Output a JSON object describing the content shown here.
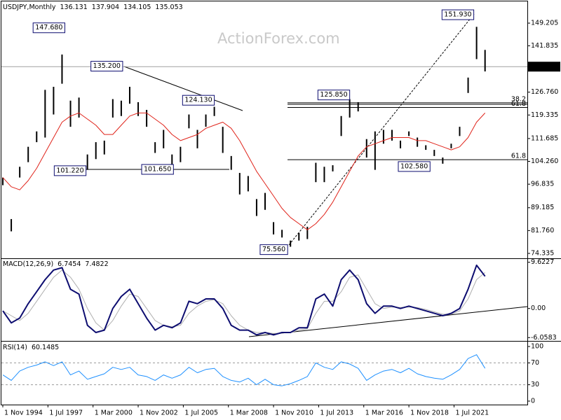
{
  "chart_data": {
    "type": "ohlc",
    "title": "USDJPY,Monthly",
    "header_values": [
      136.131,
      137.904,
      134.105,
      135.053
    ],
    "watermark": "ActionForex.com",
    "last": 135.053,
    "bar_color": "#000000",
    "ma_color": "#e0241b",
    "last_color": "#000000",
    "x": [
      "1994-11",
      "1995-05",
      "1995-11",
      "1996-05",
      "1996-11",
      "1997-05",
      "1997-11",
      "1998-05",
      "1998-11",
      "1999-05",
      "1999-11",
      "2000-05",
      "2000-11",
      "2001-05",
      "2001-11",
      "2002-05",
      "2002-11",
      "2003-05",
      "2003-11",
      "2004-05",
      "2004-11",
      "2005-05",
      "2005-11",
      "2006-05",
      "2006-11",
      "2007-05",
      "2007-11",
      "2008-05",
      "2008-11",
      "2009-05",
      "2009-11",
      "2010-05",
      "2010-11",
      "2011-05",
      "2011-11",
      "2012-05",
      "2012-11",
      "2013-05",
      "2013-11",
      "2014-05",
      "2014-11",
      "2015-05",
      "2015-11",
      "2016-05",
      "2016-11",
      "2017-05",
      "2017-11",
      "2018-05",
      "2018-11",
      "2019-05",
      "2019-11",
      "2020-05",
      "2020-11",
      "2021-05",
      "2021-11",
      "2022-05",
      "2022-11",
      "2023-05"
    ],
    "high": [
      99,
      85.5,
      102.5,
      109,
      114,
      127.5,
      128.5,
      139,
      124,
      125,
      106.5,
      110.5,
      111,
      124.5,
      124,
      128.5,
      123.5,
      121,
      110.5,
      114.5,
      106.5,
      109,
      119.5,
      114.5,
      119.5,
      122,
      115.5,
      106,
      100.5,
      99.5,
      92,
      94,
      84.5,
      82,
      78.5,
      81,
      83,
      103.8,
      102.5,
      103,
      119,
      124.5,
      123.5,
      111.5,
      114,
      114.5,
      114.5,
      111,
      114,
      112,
      109.5,
      108,
      105.5,
      110,
      115.5,
      131.5,
      148,
      140.5
    ],
    "low": [
      96.5,
      81.5,
      99,
      104,
      110.5,
      112,
      119.5,
      129.5,
      115.5,
      118.5,
      101.5,
      105,
      106.5,
      118.5,
      119,
      123,
      119,
      115.5,
      107,
      108.5,
      102,
      104,
      115,
      108.5,
      115.5,
      119,
      107,
      101.5,
      93.5,
      94.5,
      86.5,
      88.5,
      80.5,
      79.5,
      76.5,
      78.5,
      79,
      97.5,
      97.5,
      101,
      112.5,
      118.5,
      120.5,
      105.5,
      101.5,
      110,
      111,
      108.5,
      112.5,
      109,
      108,
      106,
      103.5,
      108.5,
      112.5,
      126.5,
      137.5,
      133.5
    ],
    "ma": [
      99,
      96,
      95,
      98,
      102,
      107,
      112,
      117,
      119,
      120,
      118,
      116,
      113,
      113,
      116,
      119,
      120,
      120,
      118,
      116,
      113,
      111,
      112,
      113,
      115,
      116,
      117,
      115,
      111,
      106,
      101,
      97,
      93,
      89,
      86,
      84,
      82,
      84,
      87,
      91,
      96,
      101,
      106,
      109,
      110,
      111,
      112,
      112,
      112,
      111,
      111,
      110,
      109,
      108,
      109,
      112,
      117,
      120
    ],
    "xlim": [
      "1994-10",
      "2025-11"
    ],
    "xticks": [
      {
        "value": "1994-11",
        "label": "1 Nov 1994"
      },
      {
        "value": "1997-07",
        "label": "1 Jul 1997"
      },
      {
        "value": "2000-03",
        "label": "1 Mar 2000"
      },
      {
        "value": "2002-11",
        "label": "1 Nov 2002"
      },
      {
        "value": "2005-07",
        "label": "1 Jul 2005"
      },
      {
        "value": "2008-03",
        "label": "1 Mar 2008"
      },
      {
        "value": "2010-11",
        "label": "1 Nov 2010"
      },
      {
        "value": "2013-07",
        "label": "1 Jul 2013"
      },
      {
        "value": "2016-03",
        "label": "1 Mar 2016"
      },
      {
        "value": "2018-11",
        "label": "1 Nov 2018"
      },
      {
        "value": "2021-07",
        "label": "1 Jul 2021"
      }
    ],
    "ylim": [
      72.74,
      156.27
    ],
    "yticks": [
      74.335,
      {
        "value": 81.76,
        "label": "81.760"
      },
      89.185,
      96.835,
      {
        "value": 104.26,
        "label": "104.260"
      },
      111.685,
      119.335,
      {
        "value": 126.76,
        "label": "126.760"
      },
      141.835,
      149.205
    ],
    "annotations": [
      {
        "x": "1998-08",
        "value": 147.68,
        "label": "147.680"
      },
      {
        "x": "2002-01",
        "value": 135.2,
        "label": "135.200"
      },
      {
        "x": "2007-06",
        "value": 124.13,
        "label": "124.130"
      },
      {
        "x": "1999-11",
        "value": 101.22,
        "label": "101.220"
      },
      {
        "x": "2005-01",
        "value": 101.65,
        "label": "101.650"
      },
      {
        "x": "2011-10",
        "value": 75.56,
        "label": "75.560"
      },
      {
        "x": "2015-06",
        "value": 125.85,
        "label": "125.850"
      },
      {
        "x": "2020-03",
        "value": 102.58,
        "label": "102.580"
      },
      {
        "x": "2022-10",
        "value": 151.93,
        "label": "151.930"
      }
    ],
    "fib_levels": [
      {
        "label": "38.2",
        "value": 123.3
      },
      {
        "label": "61.8",
        "value": 121.8
      },
      {
        "label": "61.8",
        "value": 104.8
      }
    ],
    "indicators": [
      {
        "type": "macd",
        "title": "MACD(12,26,9)",
        "header_values": [
          6.7454,
          7.4822
        ],
        "macd_color": "#0d0d70",
        "signal_color": "#b0b0b0",
        "ylim": [
          -6.6,
          10.3
        ],
        "yticks": [
          -6.0583,
          {
            "value": 0,
            "label": "0.00"
          },
          9.6227
        ],
        "macd": [
          -0.5,
          -3,
          -2,
          1,
          3.5,
          6,
          8,
          8.5,
          4,
          3,
          -3.5,
          -5,
          -4.5,
          0,
          2.5,
          4,
          1,
          -2,
          -4.5,
          -3.5,
          -4,
          -3,
          1.5,
          1,
          2,
          2,
          0,
          -3.5,
          -4.5,
          -4.5,
          -5.5,
          -5,
          -5.5,
          -5,
          -5,
          -4,
          -4,
          2,
          3,
          0.5,
          6,
          8,
          6,
          1,
          -1,
          0.5,
          0.5,
          0,
          0.5,
          0,
          -0.5,
          -1,
          -1.5,
          -1,
          0,
          4,
          9,
          6.7
        ],
        "signal": [
          -0.5,
          -1.5,
          -2.5,
          -1,
          1.5,
          4,
          6.5,
          8,
          6.5,
          4,
          0,
          -3,
          -4.5,
          -2.5,
          0.5,
          3,
          2.5,
          0,
          -2.5,
          -3.5,
          -3.8,
          -3.5,
          -1,
          0.5,
          1.5,
          1.8,
          1,
          -1.5,
          -3.5,
          -4.5,
          -5,
          -5,
          -5.2,
          -5.1,
          -5,
          -4.5,
          -4.2,
          -1,
          1.5,
          1.5,
          3.5,
          6.5,
          7,
          4,
          1,
          0,
          0.3,
          0.2,
          0.3,
          0.2,
          -0.2,
          -0.7,
          -1.2,
          -1.2,
          -0.5,
          2,
          6,
          7.5
        ]
      },
      {
        "type": "rsi",
        "title": "RSI(14)",
        "header_values": [
          60.1485
        ],
        "color": "#1e90ff",
        "levels": [
          30,
          70
        ],
        "ylim": [
          -6.4,
          109
        ],
        "yticks": [
          0,
          30,
          70,
          100
        ],
        "values": [
          48,
          38,
          55,
          62,
          66,
          72,
          65,
          72,
          48,
          55,
          40,
          45,
          50,
          62,
          58,
          62,
          48,
          45,
          38,
          48,
          42,
          48,
          62,
          52,
          58,
          60,
          45,
          38,
          35,
          42,
          30,
          40,
          30,
          28,
          32,
          38,
          45,
          70,
          62,
          58,
          72,
          68,
          60,
          38,
          48,
          55,
          58,
          52,
          60,
          50,
          45,
          42,
          40,
          48,
          58,
          78,
          85,
          60
        ]
      }
    ]
  }
}
